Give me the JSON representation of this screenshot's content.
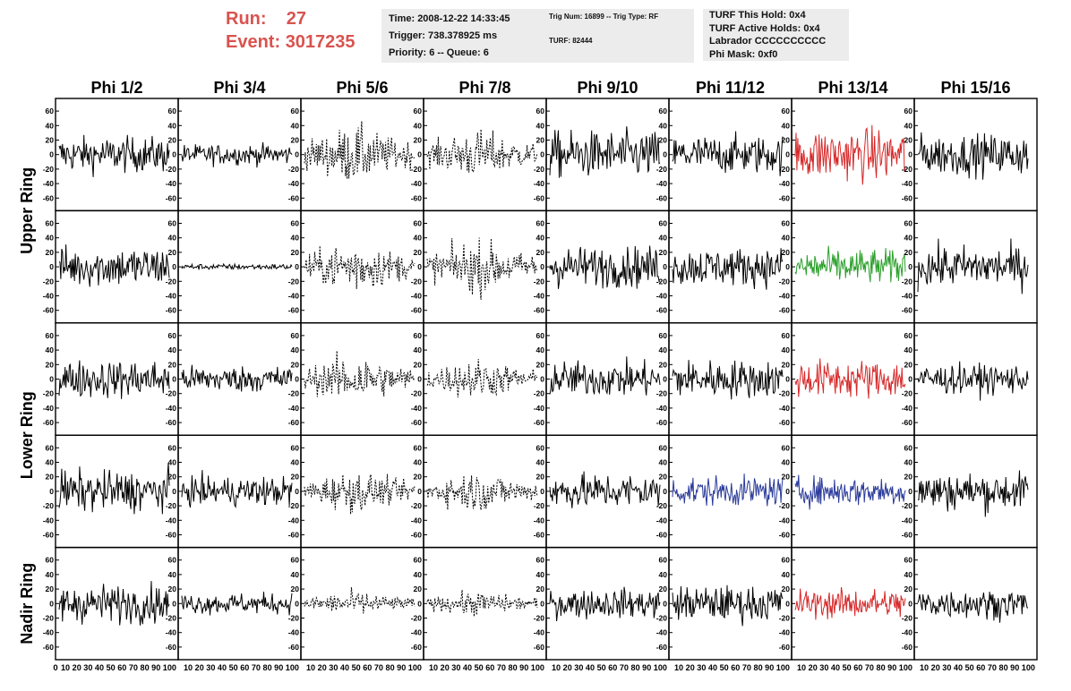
{
  "header": {
    "run_label": "Run:",
    "run_value": "27",
    "event_label": "Event:",
    "event_value": "3017235",
    "label_color": "#d9534f",
    "time": "Time: 2008-12-22 14:33:45",
    "trigger": "Trigger: 738.378925 ms",
    "priority": "Priority: 6 -- Queue: 6",
    "trig_num": "Trig Num: 16899 -- Trig Type: RF",
    "turf": "TURF: 82444",
    "turf_hold": "TURF This Hold: 0x4",
    "turf_active": "TURF Active Holds: 0x4",
    "labrador": "Labrador CCCCCCCCCC",
    "phi_mask": "Phi Mask: 0xf0"
  },
  "chart_data": {
    "type": "line",
    "columns": [
      "Phi 1/2",
      "Phi 3/4",
      "Phi 5/6",
      "Phi 7/8",
      "Phi 9/10",
      "Phi 11/12",
      "Phi 13/14",
      "Phi 15/16"
    ],
    "row_labels": [
      "Upper Ring",
      "Lower Ring",
      "Nadir Ring"
    ],
    "rows": 5,
    "ylim": [
      -70,
      70
    ],
    "xlim": [
      0,
      100
    ],
    "ytick_labels": [
      "60",
      "40",
      "20",
      "0",
      "-20",
      "-40",
      "-60"
    ],
    "xtick_labels": [
      "0",
      "10",
      "20",
      "30",
      "40",
      "50",
      "60",
      "70",
      "80",
      "90",
      "100"
    ],
    "xtick_label_text": "10 20 30 40 50 60 70 80 90 100",
    "panel_styles": [
      [
        "solid",
        "solid",
        "dashed",
        "dashed",
        "solid",
        "solid",
        "solid",
        "solid"
      ],
      [
        "solid",
        "solid",
        "dashed",
        "dashed",
        "solid",
        "solid",
        "solid",
        "solid"
      ],
      [
        "solid",
        "solid",
        "dashed",
        "dashed",
        "solid",
        "solid",
        "solid",
        "solid"
      ],
      [
        "solid",
        "solid",
        "dashed",
        "dashed",
        "solid",
        "solid",
        "solid",
        "solid"
      ],
      [
        "solid",
        "solid",
        "dashed",
        "dashed",
        "solid",
        "solid",
        "solid",
        "solid"
      ]
    ],
    "panel_colors": [
      [
        "#000000",
        "#000000",
        "#000000",
        "#000000",
        "#000000",
        "#000000",
        "#d62728",
        "#000000"
      ],
      [
        "#000000",
        "#000000",
        "#000000",
        "#000000",
        "#000000",
        "#000000",
        "#2ca02c",
        "#000000"
      ],
      [
        "#000000",
        "#000000",
        "#000000",
        "#000000",
        "#000000",
        "#000000",
        "#d62728",
        "#000000"
      ],
      [
        "#000000",
        "#000000",
        "#000000",
        "#000000",
        "#000000",
        "#2a3a9a",
        "#2a3a9a",
        "#000000"
      ],
      [
        "#000000",
        "#000000",
        "#000000",
        "#000000",
        "#000000",
        "#000000",
        "#d62728",
        "#000000"
      ]
    ],
    "panel_amplitudes": [
      [
        12,
        7,
        14,
        12,
        16,
        13,
        18,
        14
      ],
      [
        14,
        2,
        13,
        13,
        14,
        13,
        12,
        14
      ],
      [
        13,
        9,
        12,
        10,
        12,
        13,
        13,
        10
      ],
      [
        14,
        10,
        10,
        10,
        12,
        10,
        10,
        13
      ],
      [
        13,
        7,
        6,
        6,
        10,
        12,
        10,
        10
      ]
    ],
    "samples_per_trace": 130
  }
}
